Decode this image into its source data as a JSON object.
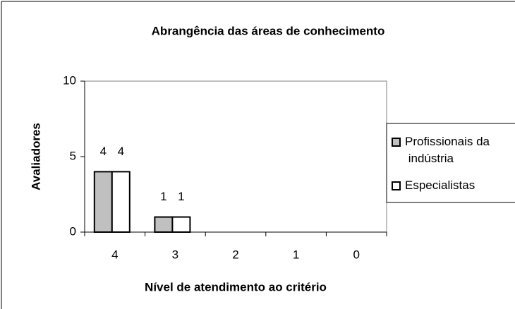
{
  "chart_data": {
    "type": "bar",
    "title": "Abrangência das áreas de conhecimento",
    "x_label": "Nível de atendimento ao critério",
    "y_label": "Avaliadores",
    "categories": [
      "4",
      "3",
      "2",
      "1",
      "0"
    ],
    "series": [
      {
        "name": "Profissionais da indústria",
        "color": "#c0c0c0",
        "values": [
          4,
          1,
          0,
          0,
          0
        ]
      },
      {
        "name": "Especialistas",
        "color": "#ffffff",
        "values": [
          4,
          1,
          0,
          0,
          0
        ]
      }
    ],
    "ylim": [
      0,
      10
    ],
    "yticks": [
      0,
      5,
      10
    ],
    "legend": "right"
  }
}
